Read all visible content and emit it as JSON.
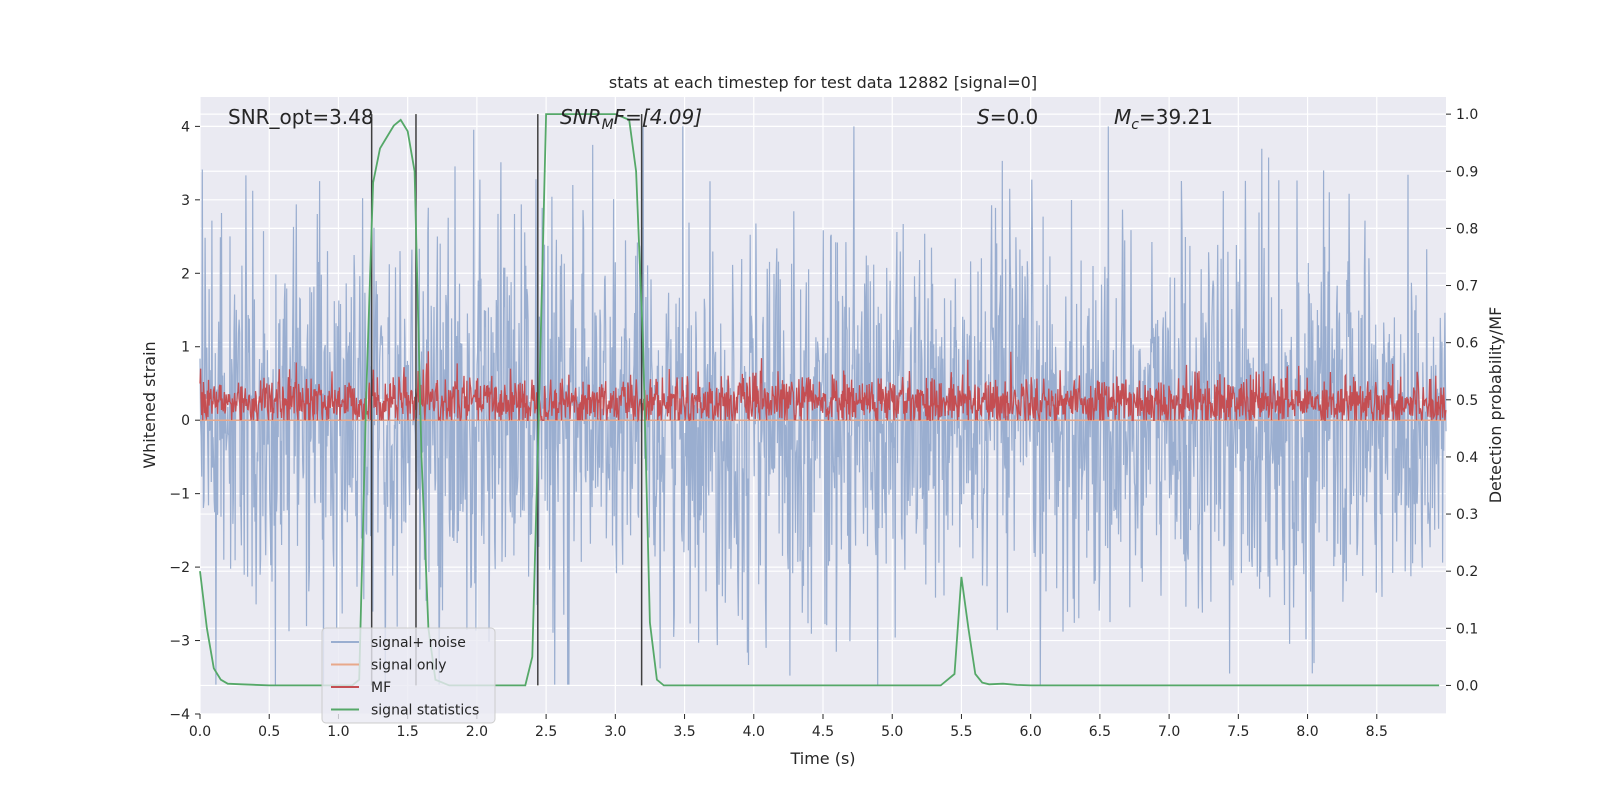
{
  "chart_data": {
    "type": "line",
    "title": "stats at each timestep for test data 12882 [signal=0]",
    "xlabel": "Time (s)",
    "ylabel": "Whitened strain",
    "ylabel_right": "Detection probability/MF",
    "xlim": [
      0.0,
      9.0
    ],
    "ylim": [
      -4,
      4.4
    ],
    "ylim_right": [
      -0.05,
      1.03
    ],
    "x_ticks": [
      "0.0",
      "0.5",
      "1.0",
      "1.5",
      "2.0",
      "2.5",
      "3.0",
      "3.5",
      "4.0",
      "4.5",
      "5.0",
      "5.5",
      "6.0",
      "6.5",
      "7.0",
      "7.5",
      "8.0",
      "8.5"
    ],
    "x_tick_values": [
      0.0,
      0.5,
      1.0,
      1.5,
      2.0,
      2.5,
      3.0,
      3.5,
      4.0,
      4.5,
      5.0,
      5.5,
      6.0,
      6.5,
      7.0,
      7.5,
      8.0,
      8.5
    ],
    "y_ticks": [
      "4",
      "3",
      "2",
      "1",
      "0",
      "−1",
      "−2",
      "−3",
      "−4"
    ],
    "y_tick_values": [
      4,
      3,
      2,
      1,
      0,
      -1,
      -2,
      -3,
      -4
    ],
    "y_right_ticks": [
      "1.0",
      "0.9",
      "0.8",
      "0.7",
      "0.6",
      "0.5",
      "0.4",
      "0.3",
      "0.2",
      "0.1",
      "0.0"
    ],
    "y_right_tick_values": [
      1.0,
      0.9,
      0.8,
      0.7,
      0.6,
      0.5,
      0.4,
      0.3,
      0.2,
      0.1,
      0.0
    ],
    "grid": true,
    "legend_position": "bottom-left",
    "annotations": {
      "snr_opt": "SNR_opt=3.48",
      "snr_mf_name": "SNR",
      "snr_mf_sub": "M",
      "snr_mf_tail": "F=[4.09]",
      "s_name": "S",
      "s_tail": "=0.0",
      "mc_name": "M",
      "mc_sub": "c",
      "mc_tail": "=39.21"
    },
    "vertical_lines": [
      1.24,
      1.56,
      2.44,
      3.19
    ],
    "series": [
      {
        "name": "signal+ noise",
        "color": "#9aaed0",
        "axis": "left",
        "kind": "noise",
        "amplitude_range": [
          -3.6,
          4.0
        ]
      },
      {
        "name": "signal only",
        "color": "#e8a88a",
        "axis": "left",
        "kind": "constant",
        "value": 0.0
      },
      {
        "name": "MF",
        "color": "#c44e52",
        "axis": "left",
        "kind": "noise",
        "amplitude_range": [
          0.0,
          1.0
        ]
      },
      {
        "name": "signal statistics",
        "color": "#55a868",
        "axis": "right",
        "kind": "line",
        "x": [
          0.0,
          0.05,
          0.1,
          0.15,
          0.2,
          0.3,
          0.5,
          0.8,
          1.0,
          1.1,
          1.15,
          1.2,
          1.25,
          1.3,
          1.35,
          1.4,
          1.45,
          1.5,
          1.55,
          1.6,
          1.65,
          1.7,
          1.8,
          2.0,
          2.2,
          2.35,
          2.4,
          2.45,
          2.5,
          2.6,
          2.8,
          3.0,
          3.1,
          3.15,
          3.2,
          3.25,
          3.3,
          3.35,
          3.4,
          3.6,
          4.0,
          5.0,
          5.35,
          5.45,
          5.5,
          5.55,
          5.6,
          5.65,
          5.7,
          5.8,
          5.9,
          6.0,
          6.1,
          6.5,
          7.0,
          8.0,
          8.95
        ],
        "values": [
          0.2,
          0.1,
          0.03,
          0.01,
          0.003,
          0.002,
          0.0,
          0.0,
          0.0,
          0.0,
          0.01,
          0.5,
          0.88,
          0.94,
          0.96,
          0.98,
          0.99,
          0.97,
          0.9,
          0.4,
          0.1,
          0.01,
          0.0,
          0.0,
          0.0,
          0.0,
          0.05,
          0.5,
          1.0,
          1.0,
          1.0,
          1.0,
          0.99,
          0.9,
          0.6,
          0.11,
          0.01,
          0.0,
          0.0,
          0.0,
          0.0,
          0.0,
          0.0,
          0.02,
          0.19,
          0.1,
          0.02,
          0.005,
          0.002,
          0.003,
          0.001,
          0.0,
          0.0,
          0.0,
          0.0,
          0.0,
          0.0
        ]
      }
    ]
  }
}
